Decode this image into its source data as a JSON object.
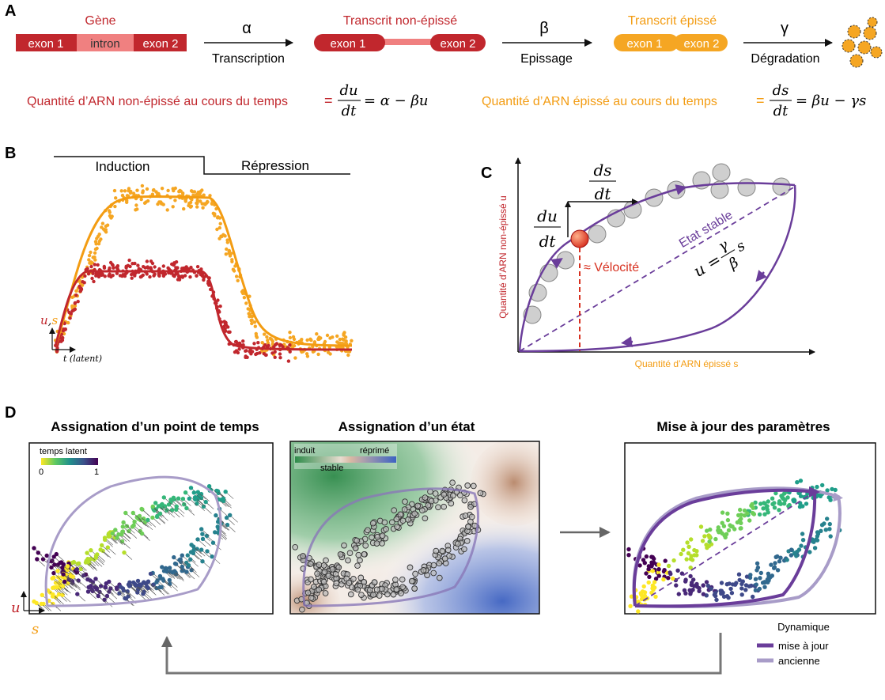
{
  "colors": {
    "red": "#c1272d",
    "red_light": "#f08080",
    "orange": "#f39c12",
    "orange_fill": "#f5a623",
    "purple": "#6a3d9a",
    "purple_light": "#a89cc8",
    "gray_cell": "#c8c8c8",
    "green_zone": "#3aa35b",
    "blue_zone": "#4a74c9",
    "brown_zone": "#b07a5a"
  },
  "panel_a": {
    "label": "A",
    "gene_title": "Gène",
    "gene_exon1": "exon 1",
    "gene_intron": "intron",
    "gene_exon2": "exon 2",
    "alpha": "α",
    "transcription": "Transcription",
    "unspliced_title": "Transcrit non-épissé",
    "unspliced_exon1": "exon 1",
    "unspliced_exon2": "exon 2",
    "beta": "β",
    "splicing": "Epissage",
    "spliced_title": "Transcrit épissé",
    "spliced_exon1": "exon 1",
    "spliced_exon2": "exon 2",
    "gamma": "γ",
    "degradation": "Dégradation",
    "eq_unspliced_label": "Quantité d’ARN non-épissé au cours du temps",
    "eq_spliced_label": "Quantité d’ARN épissé au cours du temps",
    "eq_equals": "=",
    "eq_du_num": "du",
    "eq_dt": "dt",
    "eq_ds_num": "ds",
    "eq_unspliced_rhs": "= α −  βu",
    "eq_spliced_rhs": "= βu −  γs"
  },
  "panel_b": {
    "label": "B",
    "induction": "Induction",
    "repression": "Répression",
    "y_label_u": "u",
    "y_label_comma": ",",
    "y_label_s": "s",
    "x_label": "t (latent)"
  },
  "panel_c": {
    "label": "C",
    "y_axis": "Quantité d’ARN non-épissé u",
    "x_axis": "Quantité d’ARN épissé s",
    "ds_num": "ds",
    "ds_den": "dt",
    "du_num": "du",
    "du_den": "dt",
    "velocity": "≈ Vélocité",
    "steady_state": "Etat stable",
    "eq_lhs": "u =",
    "eq_gamma": "γ",
    "eq_beta": "β",
    "eq_s": "s"
  },
  "panel_d": {
    "label": "D",
    "time_title": "Assignation d’un point de temps",
    "latent_time": "temps latent",
    "latent_min": "0",
    "latent_max": "1",
    "state_title": "Assignation d’un état",
    "induced": "induit",
    "repressed": "réprimé",
    "stable": "stable",
    "update_title": "Mise à jour des paramètres",
    "axis_u": "u",
    "axis_s": "s",
    "legend_title": "Dynamique",
    "legend_updated": "mise à jour",
    "legend_old": "ancienne"
  }
}
